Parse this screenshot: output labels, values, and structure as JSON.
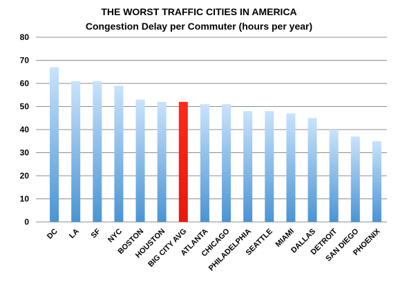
{
  "chart_data": {
    "type": "bar",
    "title": "THE WORST TRAFFIC CITIES IN AMERICA",
    "subtitle": "Congestion Delay per Commuter (hours per year)",
    "categories": [
      "DC",
      "LA",
      "SF",
      "NYC",
      "BOSTON",
      "HOUSTON",
      "BIG CITY AVG",
      "ATLANTA",
      "CHICAGO",
      "PHILADELPHIA",
      "SEATTLE",
      "MIAMI",
      "DALLAS",
      "DETROIT",
      "SAN DIEGO",
      "PHOENIX"
    ],
    "values": [
      67,
      61,
      61,
      59,
      53,
      52,
      52,
      51,
      51,
      48,
      48,
      47,
      45,
      40,
      37,
      35
    ],
    "highlight_index": 6,
    "ylim": [
      0,
      80
    ],
    "yticks": [
      "0",
      "10",
      "20",
      "30",
      "40",
      "50",
      "60",
      "70",
      "80"
    ],
    "xlabel": "",
    "ylabel": "",
    "grid": true,
    "legend": "none",
    "colors": {
      "bar_top": "#c9e3fb",
      "bar_bottom": "#4a94d4",
      "highlight_top": "#ff2a1a",
      "highlight_bottom": "#e8190c",
      "grid": "#8c8c8c"
    }
  }
}
